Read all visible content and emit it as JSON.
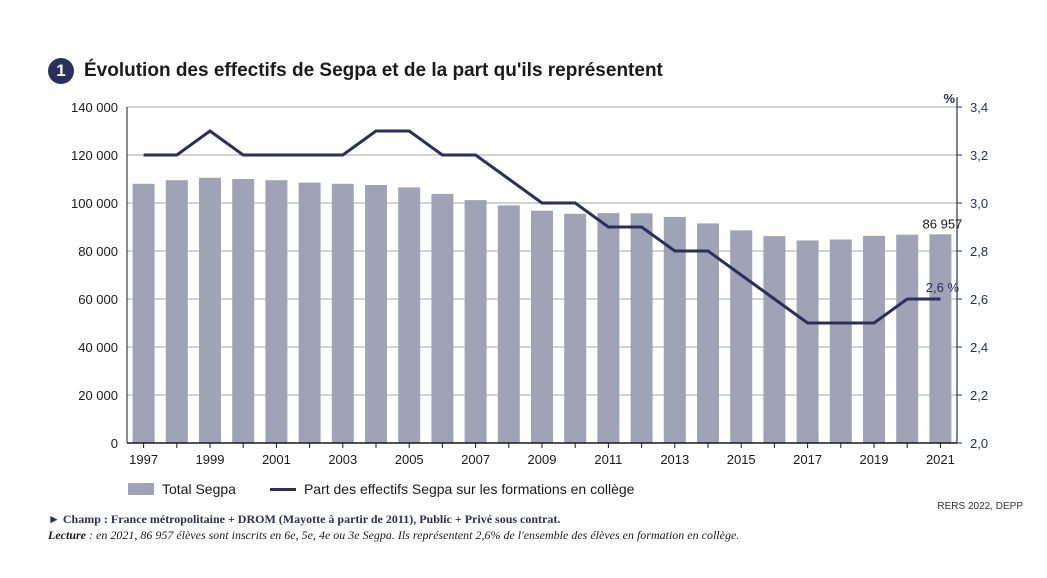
{
  "badge": "1",
  "title": "Évolution des effectifs de Segpa et de la part qu'ils représentent",
  "legend": {
    "bars": "Total Segpa",
    "line": "Part des effectifs Segpa sur les formations en collège"
  },
  "notes": {
    "champ": "► Champ : France métropolitaine + DROM (Mayotte à partir de 2011), Public + Privé sous contrat.",
    "lecture_label": "Lecture",
    "lecture_text": " : en 2021, 86 957 élèves sont inscrits en 6e, 5e, 4e ou 3e Segpa. Ils représentent 2,6% de l'ensemble des élèves en formation en collège."
  },
  "source": "RERS 2022, DEPP",
  "colors": {
    "bar": "#a0a3b5",
    "line": "#2b2f5c",
    "grid": "#8a8a8a"
  },
  "chart_data": {
    "type": "bar",
    "title": "Évolution des effectifs de Segpa et de la part qu'ils représentent",
    "categories": [
      "1997",
      "1998",
      "1999",
      "2000",
      "2001",
      "2002",
      "2003",
      "2004",
      "2005",
      "2006",
      "2007",
      "2008",
      "2009",
      "2010",
      "2011",
      "2012",
      "2013",
      "2014",
      "2015",
      "2016",
      "2017",
      "2018",
      "2019",
      "2020",
      "2021"
    ],
    "x_tick_labels": [
      "1997",
      "1999",
      "2001",
      "2003",
      "2005",
      "2007",
      "2009",
      "2011",
      "2013",
      "2015",
      "2017",
      "2019",
      "2021"
    ],
    "series": [
      {
        "name": "Total Segpa",
        "type": "bar",
        "axis": "left",
        "values": [
          108000,
          109500,
          110500,
          110000,
          109500,
          108500,
          108000,
          107500,
          106500,
          103800,
          101200,
          99000,
          96800,
          95500,
          95800,
          95700,
          94200,
          91500,
          88600,
          86200,
          84400,
          84800,
          86300,
          86800,
          86957
        ]
      },
      {
        "name": "Part des effectifs Segpa sur les formations en collège",
        "type": "line",
        "axis": "right",
        "values": [
          3.2,
          3.2,
          3.3,
          3.2,
          3.2,
          3.2,
          3.2,
          3.3,
          3.3,
          3.2,
          3.2,
          3.1,
          3.0,
          3.0,
          2.9,
          2.9,
          2.8,
          2.8,
          2.7,
          2.6,
          2.5,
          2.5,
          2.5,
          2.6,
          2.6
        ]
      }
    ],
    "y_left": {
      "ylim": [
        0,
        140000
      ],
      "ticks": [
        "0",
        "20 000",
        "40 000",
        "60 000",
        "80 000",
        "100 000",
        "120 000",
        "140 000"
      ]
    },
    "y_right": {
      "label": "%",
      "ylim": [
        2.0,
        3.4
      ],
      "ticks": [
        "2,0",
        "2,2",
        "2,4",
        "2,6",
        "2,8",
        "3,0",
        "3,2",
        "3,4"
      ]
    },
    "annotations": {
      "last_bar": "86 957",
      "last_line": "2,6 %"
    },
    "grid": true
  }
}
